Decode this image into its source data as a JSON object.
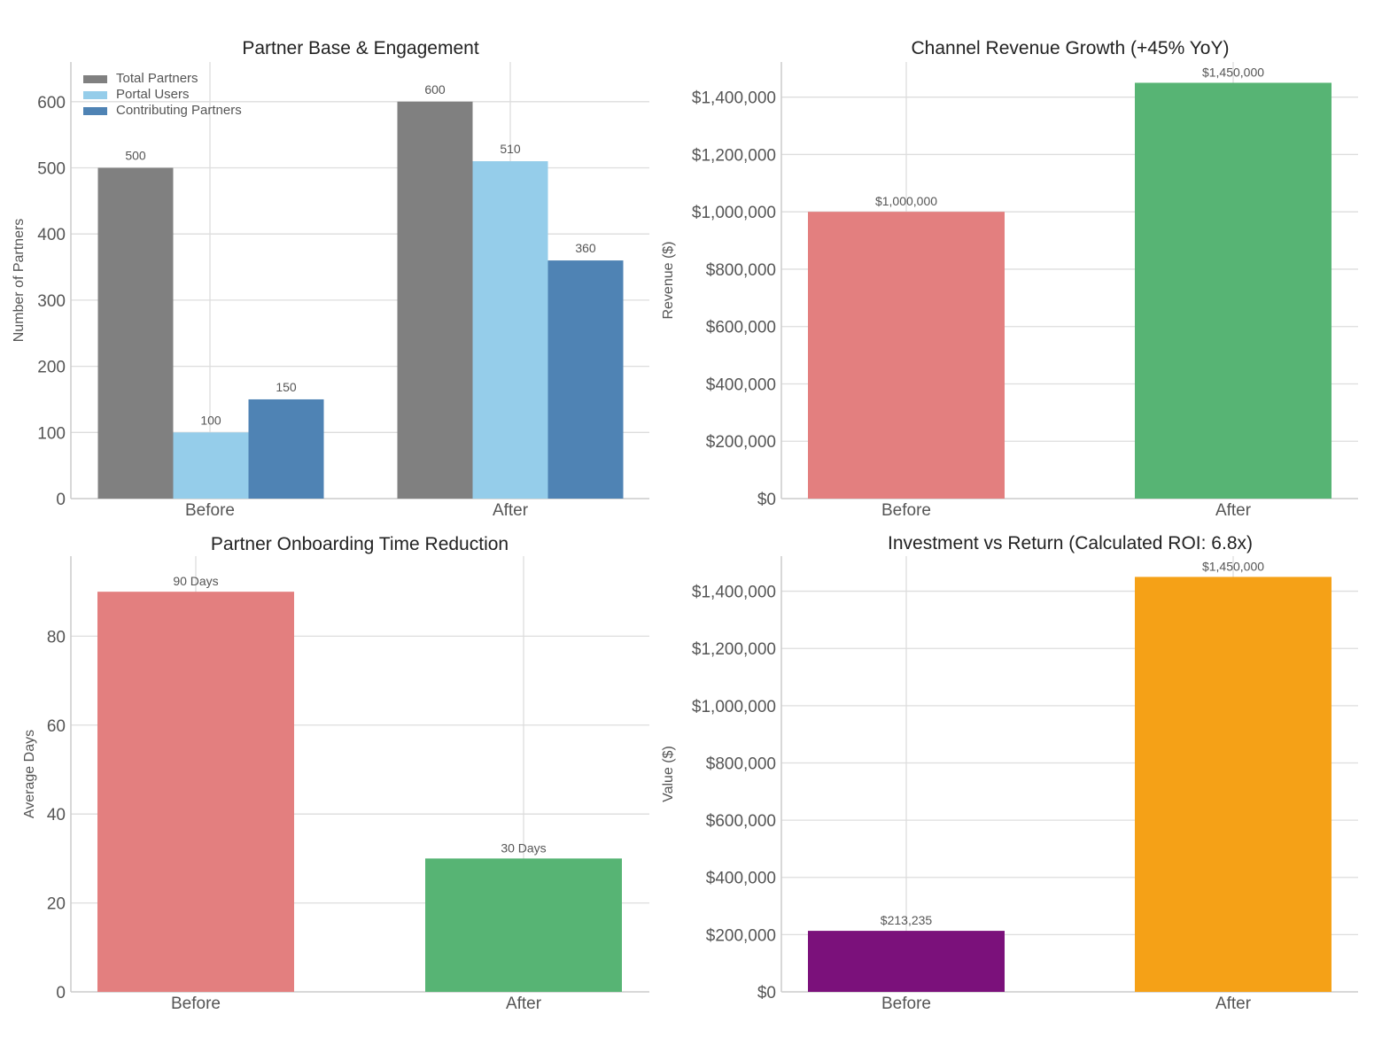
{
  "chart_data": [
    {
      "type": "bar",
      "title": "Partner Base & Engagement",
      "xlabel": "",
      "ylabel": "Number of Partners",
      "categories": [
        "Before",
        "After"
      ],
      "series": [
        {
          "name": "Total Partners",
          "values": [
            500,
            600
          ],
          "labels": [
            "500",
            "600"
          ],
          "color": "#808080"
        },
        {
          "name": "Portal Users",
          "values": [
            100,
            510
          ],
          "labels": [
            "100",
            "510"
          ],
          "color": "#95cdea"
        },
        {
          "name": "Contributing Partners",
          "values": [
            150,
            360
          ],
          "labels": [
            "150",
            "360"
          ],
          "color": "#4f83b4"
        }
      ],
      "ylim": [
        0,
        660
      ],
      "yticks": [
        0,
        100,
        200,
        300,
        400,
        500,
        600
      ],
      "ytick_labels": [
        "0",
        "100",
        "200",
        "300",
        "400",
        "500",
        "600"
      ],
      "grid": true,
      "legend": "top-left"
    },
    {
      "type": "bar",
      "title": "Channel Revenue Growth (+45% YoY)",
      "xlabel": "",
      "ylabel": "Revenue ($)",
      "categories": [
        "Before",
        "After"
      ],
      "values": [
        1000000,
        1450000
      ],
      "labels": [
        "$1,000,000",
        "$1,450,000"
      ],
      "colors": [
        "#e37f7f",
        "#57b474"
      ],
      "ylim": [
        0,
        1522500
      ],
      "yticks": [
        0,
        200000,
        400000,
        600000,
        800000,
        1000000,
        1200000,
        1400000
      ],
      "ytick_labels": [
        "$0",
        "$200,000",
        "$400,000",
        "$600,000",
        "$800,000",
        "$1,000,000",
        "$1,200,000",
        "$1,400,000"
      ],
      "grid": true
    },
    {
      "type": "bar",
      "title": "Partner Onboarding Time Reduction",
      "xlabel": "",
      "ylabel": "Average Days",
      "categories": [
        "Before",
        "After"
      ],
      "values": [
        90,
        30
      ],
      "labels": [
        "90 Days",
        "30 Days"
      ],
      "colors": [
        "#e37f7f",
        "#57b474"
      ],
      "ylim": [
        0,
        98
      ],
      "yticks": [
        0,
        20,
        40,
        60,
        80
      ],
      "ytick_labels": [
        "0",
        "20",
        "40",
        "60",
        "80"
      ],
      "grid": true
    },
    {
      "type": "bar",
      "title": "Investment vs Return (Calculated ROI: 6.8x)",
      "xlabel": "",
      "ylabel": "Value ($)",
      "categories": [
        "Before",
        "After"
      ],
      "values": [
        213235,
        1450000
      ],
      "labels": [
        "$213,235",
        "$1,450,000"
      ],
      "colors": [
        "#7b117b",
        "#f5a117"
      ],
      "ylim": [
        0,
        1522500
      ],
      "yticks": [
        0,
        200000,
        400000,
        600000,
        800000,
        1000000,
        1200000,
        1400000
      ],
      "ytick_labels": [
        "$0",
        "$200,000",
        "$400,000",
        "$600,000",
        "$800,000",
        "$1,000,000",
        "$1,200,000",
        "$1,400,000"
      ],
      "grid": true
    }
  ]
}
